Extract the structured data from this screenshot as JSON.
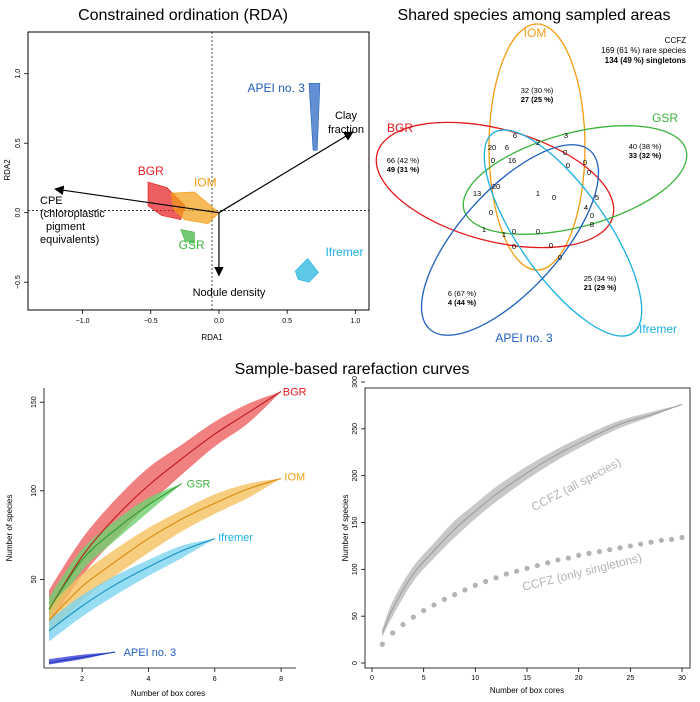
{
  "titles": {
    "rda": "Constrained ordination (RDA)",
    "venn": "Shared species among sampled areas",
    "rarefaction": "Sample-based rarefaction curves"
  },
  "colors": {
    "BGR": "#e41a1c",
    "IOM": "#f39c12",
    "GSR": "#3cb43c",
    "Ifremer": "#1ab0e0",
    "APEI no. 3": "#1f5fbf",
    "CCFZ": "#b3b3b3"
  },
  "chart_data": [
    {
      "type": "scatter",
      "xlabel": "RDA1",
      "ylabel": "RDA2",
      "xlim": [
        -1.4,
        1.1
      ],
      "ylim": [
        -0.7,
        1.3
      ],
      "xticks": [
        -1.0,
        -0.5,
        0.0,
        0.5,
        1.0
      ],
      "yticks": [
        -0.5,
        0.0,
        0.5,
        1.0
      ],
      "xtick_labels": [
        "−1.0",
        "−0.5",
        "0.0",
        "0.5",
        "1.0"
      ],
      "ytick_labels": [
        "−0.5",
        "0.0",
        "0.5",
        "1.0"
      ],
      "groups": [
        {
          "name": "BGR",
          "label_pos": [
            -0.5,
            0.27
          ],
          "hull": [
            [
              -0.52,
              0.22
            ],
            [
              -0.38,
              0.18
            ],
            [
              -0.25,
              0.05
            ],
            [
              -0.28,
              -0.05
            ],
            [
              -0.42,
              -0.02
            ],
            [
              -0.52,
              0.05
            ]
          ]
        },
        {
          "name": "IOM",
          "label_pos": [
            -0.1,
            0.19
          ],
          "hull": [
            [
              -0.35,
              0.14
            ],
            [
              -0.18,
              0.15
            ],
            [
              0.0,
              0.0
            ],
            [
              -0.08,
              -0.08
            ],
            [
              -0.25,
              -0.05
            ],
            [
              -0.33,
              0.02
            ]
          ]
        },
        {
          "name": "GSR",
          "label_pos": [
            -0.2,
            -0.26
          ],
          "hull": [
            [
              -0.28,
              -0.12
            ],
            [
              -0.18,
              -0.14
            ],
            [
              -0.18,
              -0.22
            ],
            [
              -0.25,
              -0.2
            ]
          ]
        },
        {
          "name": "APEI no. 3",
          "label_pos": [
            0.42,
            0.87
          ],
          "hull": [
            [
              0.66,
              0.93
            ],
            [
              0.74,
              0.93
            ],
            [
              0.72,
              0.45
            ],
            [
              0.69,
              0.45
            ]
          ]
        },
        {
          "name": "Ifremer",
          "label_pos": [
            0.92,
            -0.31
          ],
          "hull": [
            [
              0.56,
              -0.42
            ],
            [
              0.65,
              -0.33
            ],
            [
              0.73,
              -0.43
            ],
            [
              0.66,
              -0.5
            ],
            [
              0.58,
              -0.48
            ]
          ]
        }
      ],
      "arrows": [
        {
          "label": "Clay fraction",
          "end": [
            0.98,
            0.58
          ],
          "label_pos": [
            0.95,
            0.75
          ]
        },
        {
          "label": "CPE (chloroplastic pigment equivalents)",
          "end": [
            -1.2,
            0.17
          ],
          "label_pos": [
            -1.22,
            0.03
          ]
        },
        {
          "label": "Nodule density",
          "end": [
            0.0,
            -0.45
          ],
          "label_pos": [
            0.12,
            -0.47
          ]
        }
      ]
    },
    {
      "type": "venn",
      "title": "Shared species among sampled areas",
      "note": {
        "line1": "CCFZ",
        "line2": "169 (61 %) rare species",
        "line3": "134 (49 %) singletons"
      },
      "sets": [
        {
          "name": "IOM",
          "count": "32 (30 %)",
          "singletons": "27 (25 %)"
        },
        {
          "name": "BGR",
          "count": "66 (42 %)",
          "singletons": "49 (31 %)"
        },
        {
          "name": "GSR",
          "count": "40 (38 %)",
          "singletons": "33 (32 %)"
        },
        {
          "name": "Ifremer",
          "count": "25 (34 %)",
          "singletons": "21 (29 %)"
        },
        {
          "name": "APEI no. 3",
          "count": "6 (67 %)",
          "singletons": "4 (44 %)"
        }
      ],
      "intersections": [
        "6",
        "3",
        "20",
        "6",
        "2",
        "0",
        "0",
        "16",
        "0",
        "0",
        "0",
        "5",
        "13",
        "20",
        "1",
        "0",
        "0",
        "4",
        "0",
        "8",
        "1",
        "1",
        "0",
        "0",
        "0",
        "0",
        "0"
      ]
    },
    {
      "type": "line",
      "title": "Sample-based rarefaction curves",
      "xlabel": "Number of box cores",
      "ylabel": "Number of species",
      "xlim": [
        0.85,
        8.45
      ],
      "ylim": [
        0,
        158
      ],
      "xticks": [
        2,
        4,
        6,
        8
      ],
      "yticks": [
        50,
        100,
        150
      ],
      "series": [
        {
          "name": "BGR",
          "x": [
            1,
            2,
            3,
            4,
            5,
            6,
            7,
            8
          ],
          "values": [
            33,
            63,
            85,
            103,
            118,
            132,
            144,
            156
          ],
          "lower": [
            24,
            52,
            73,
            92,
            109,
            125,
            138,
            156
          ],
          "upper": [
            44,
            73,
            95,
            113,
            126,
            139,
            149,
            156
          ]
        },
        {
          "name": "GSR",
          "x": [
            1,
            2,
            3,
            4,
            5
          ],
          "values": [
            33,
            61,
            78,
            92,
            104
          ],
          "lower": [
            27,
            55,
            72,
            88,
            104
          ],
          "upper": [
            40,
            67,
            83,
            96,
            104
          ]
        },
        {
          "name": "IOM",
          "x": [
            1,
            2,
            3,
            4,
            5,
            6,
            7,
            8
          ],
          "values": [
            27,
            46,
            60,
            73,
            84,
            93,
            101,
            107
          ],
          "lower": [
            19,
            38,
            52,
            65,
            77,
            87,
            96,
            107
          ],
          "upper": [
            35,
            53,
            67,
            79,
            89,
            98,
            104,
            107
          ]
        },
        {
          "name": "Ifremer",
          "x": [
            1,
            2,
            3,
            4,
            5,
            6
          ],
          "values": [
            21,
            35,
            47,
            57,
            66,
            73
          ],
          "lower": [
            15,
            29,
            41,
            52,
            62,
            73
          ],
          "upper": [
            27,
            41,
            52,
            61,
            69,
            73
          ]
        },
        {
          "name": "APEI no. 3",
          "x": [
            1,
            2,
            3
          ],
          "values": [
            3,
            6,
            9
          ],
          "lower": [
            2,
            5,
            9
          ],
          "upper": [
            5,
            7.5,
            9
          ]
        }
      ]
    },
    {
      "type": "line",
      "xlabel": "Number of box cores",
      "ylabel": "Number of species",
      "xlim": [
        0,
        31.5
      ],
      "ylim": [
        0,
        300
      ],
      "xticks": [
        0,
        5,
        10,
        15,
        20,
        25,
        30
      ],
      "yticks": [
        0,
        50,
        100,
        150,
        200,
        250,
        300
      ],
      "series": [
        {
          "name": "CCFZ (all species)",
          "x": [
            1,
            2,
            4,
            6,
            8,
            10,
            12,
            15,
            18,
            21,
            24,
            27,
            30
          ],
          "values": [
            32,
            58,
            95,
            120,
            143,
            162,
            180,
            203,
            223,
            240,
            255,
            265,
            276
          ],
          "lower": [
            28,
            50,
            87,
            112,
            134,
            154,
            172,
            196,
            217,
            235,
            251,
            263,
            276
          ],
          "upper": [
            36,
            66,
            103,
            128,
            152,
            170,
            188,
            210,
            229,
            245,
            259,
            268,
            276
          ]
        },
        {
          "name": "CCFZ (only singletons)",
          "x": [
            1,
            2,
            3,
            4,
            5,
            6,
            7,
            8,
            9,
            10,
            11,
            12,
            13,
            14,
            15,
            16,
            17,
            18,
            19,
            20,
            21,
            22,
            23,
            24,
            25,
            26,
            27,
            28,
            29,
            30
          ],
          "values": [
            20,
            32,
            41,
            49,
            56,
            62,
            68,
            73,
            78,
            83,
            87,
            91,
            95,
            98,
            101,
            104,
            107,
            110,
            112,
            115,
            117,
            119,
            121,
            123,
            125,
            127,
            129,
            131,
            132,
            134
          ]
        }
      ]
    }
  ]
}
